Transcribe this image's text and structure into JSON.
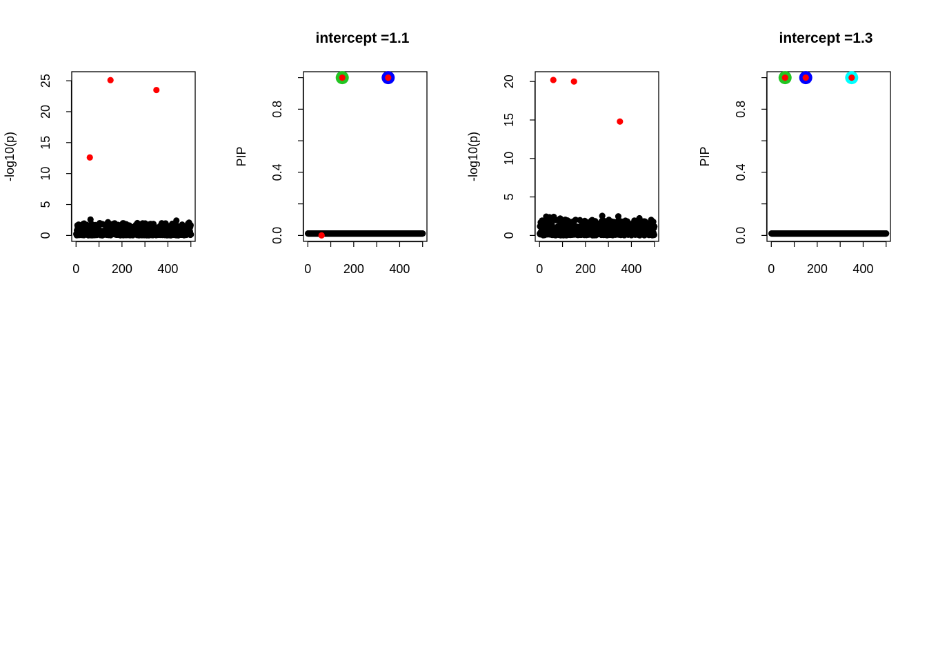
{
  "chart_data": [
    {
      "type": "scatter",
      "title": "",
      "xlabel": "",
      "ylabel": "-log10(p)",
      "xlim": [
        0,
        500
      ],
      "ylim": [
        0,
        25.5
      ],
      "xticks": [
        "0",
        "200",
        "400"
      ],
      "yticks": [
        "0",
        "5",
        "10",
        "15",
        "20",
        "25"
      ],
      "grid": false,
      "background_points": {
        "color": "#000000",
        "count": 500,
        "seed": 11,
        "max": 2.6
      },
      "highlighted": [
        {
          "x": 60,
          "y": 12.6,
          "color": "#ff0000"
        },
        {
          "x": 150,
          "y": 25.1,
          "color": "#ff0000"
        },
        {
          "x": 350,
          "y": 23.5,
          "color": "#ff0000"
        }
      ]
    },
    {
      "type": "scatter",
      "title": "intercept =1.1",
      "xlabel": "",
      "ylabel": "PIP",
      "xlim": [
        0,
        500
      ],
      "ylim": [
        0,
        1
      ],
      "xticks": [
        "0",
        "200",
        "400"
      ],
      "yticks": [
        "0.0",
        "0.4",
        "0.8"
      ],
      "grid": false,
      "background_points": {
        "color": "#000000",
        "count": 500,
        "seed": 0,
        "max": 0
      },
      "highlighted": [
        {
          "x": 60,
          "y": 0.0,
          "color": "#ff0000"
        },
        {
          "x": 150,
          "y": 1.0,
          "color": "#ff0000",
          "ring": "#22c522"
        },
        {
          "x": 350,
          "y": 1.0,
          "color": "#ff0000",
          "ring": "#0000ff"
        }
      ]
    },
    {
      "type": "scatter",
      "title": "",
      "xlabel": "",
      "ylabel": "-log10(p)",
      "xlim": [
        0,
        500
      ],
      "ylim": [
        0,
        20.5
      ],
      "xticks": [
        "0",
        "200",
        "400"
      ],
      "yticks": [
        "0",
        "5",
        "10",
        "15",
        "20"
      ],
      "grid": false,
      "background_points": {
        "color": "#000000",
        "count": 500,
        "seed": 23,
        "max": 2.6
      },
      "highlighted": [
        {
          "x": 60,
          "y": 20.2,
          "color": "#ff0000"
        },
        {
          "x": 150,
          "y": 20.0,
          "color": "#ff0000"
        },
        {
          "x": 350,
          "y": 14.8,
          "color": "#ff0000"
        }
      ]
    },
    {
      "type": "scatter",
      "title": "intercept =1.3",
      "xlabel": "",
      "ylabel": "PIP",
      "xlim": [
        0,
        500
      ],
      "ylim": [
        0,
        1
      ],
      "xticks": [
        "0",
        "200",
        "400"
      ],
      "yticks": [
        "0.0",
        "0.4",
        "0.8"
      ],
      "grid": false,
      "background_points": {
        "color": "#000000",
        "count": 500,
        "seed": 0,
        "max": 0
      },
      "highlighted": [
        {
          "x": 60,
          "y": 1.0,
          "color": "#ff0000",
          "ring": "#22c522"
        },
        {
          "x": 150,
          "y": 1.0,
          "color": "#ff0000",
          "ring": "#0000ff"
        },
        {
          "x": 350,
          "y": 1.0,
          "color": "#ff0000",
          "ring": "#00ffff"
        }
      ]
    }
  ]
}
